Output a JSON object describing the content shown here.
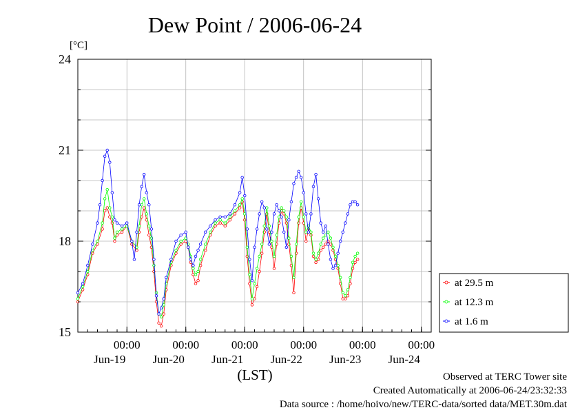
{
  "chart_data": {
    "type": "line",
    "title": "Dew Point / 2006-06-24",
    "ylabel": "[°C]",
    "xlabel": "(LST)",
    "ylim": [
      15,
      24
    ],
    "xlim": [
      0,
      144
    ],
    "y_ticks": [
      15,
      18,
      21,
      24
    ],
    "x_tick_labels": [
      {
        "x": 20,
        "time": "00:00",
        "date": "Jun-19"
      },
      {
        "x": 44,
        "time": "00:00",
        "date": "Jun-20"
      },
      {
        "x": 68,
        "time": "00:00",
        "date": "Jun-21"
      },
      {
        "x": 92,
        "time": "00:00",
        "date": "Jun-22"
      },
      {
        "x": 116,
        "time": "00:00",
        "date": "Jun-23"
      },
      {
        "x": 140,
        "time": "00:00",
        "date": "Jun-24"
      }
    ],
    "grid": true,
    "legend_position": "bottom-right outside",
    "series": [
      {
        "name": "at 29.5 m",
        "color": "#ff0000",
        "points": [
          [
            0,
            16.0
          ],
          [
            2,
            16.4
          ],
          [
            4,
            16.9
          ],
          [
            6,
            17.6
          ],
          [
            8,
            17.9
          ],
          [
            10,
            18.4
          ],
          [
            11,
            19.0
          ],
          [
            12,
            19.1
          ],
          [
            13,
            18.8
          ],
          [
            14,
            18.6
          ],
          [
            15,
            18.0
          ],
          [
            16,
            18.2
          ],
          [
            18,
            18.3
          ],
          [
            20,
            18.5
          ],
          [
            22,
            17.9
          ],
          [
            24,
            17.7
          ],
          [
            25,
            18.3
          ],
          [
            26,
            18.8
          ],
          [
            27,
            19.1
          ],
          [
            28,
            18.7
          ],
          [
            29,
            18.2
          ],
          [
            30,
            17.8
          ],
          [
            31,
            17.0
          ],
          [
            32,
            16.0
          ],
          [
            33,
            15.3
          ],
          [
            34,
            15.2
          ],
          [
            35,
            15.6
          ],
          [
            36,
            16.4
          ],
          [
            38,
            17.2
          ],
          [
            40,
            17.6
          ],
          [
            42,
            17.9
          ],
          [
            44,
            18.0
          ],
          [
            45,
            17.8
          ],
          [
            46,
            17.3
          ],
          [
            47,
            16.9
          ],
          [
            48,
            16.6
          ],
          [
            49,
            16.7
          ],
          [
            50,
            17.2
          ],
          [
            52,
            17.7
          ],
          [
            54,
            18.2
          ],
          [
            56,
            18.5
          ],
          [
            58,
            18.6
          ],
          [
            60,
            18.5
          ],
          [
            62,
            18.7
          ],
          [
            64,
            18.9
          ],
          [
            66,
            19.1
          ],
          [
            67,
            19.3
          ],
          [
            68,
            18.7
          ],
          [
            69,
            17.5
          ],
          [
            70,
            16.6
          ],
          [
            71,
            15.9
          ],
          [
            72,
            16.1
          ],
          [
            73,
            16.5
          ],
          [
            74,
            17.0
          ],
          [
            75,
            17.6
          ],
          [
            76,
            18.3
          ],
          [
            77,
            18.9
          ],
          [
            78,
            18.3
          ],
          [
            79,
            17.8
          ],
          [
            80,
            17.1
          ],
          [
            81,
            17.9
          ],
          [
            82,
            18.6
          ],
          [
            83,
            19.0
          ],
          [
            84,
            18.9
          ],
          [
            85,
            18.6
          ],
          [
            86,
            17.9
          ],
          [
            87,
            17.2
          ],
          [
            88,
            16.3
          ],
          [
            89,
            17.6
          ],
          [
            90,
            18.6
          ],
          [
            91,
            19.1
          ],
          [
            92,
            18.6
          ],
          [
            93,
            18.0
          ],
          [
            94,
            18.4
          ],
          [
            95,
            18.2
          ],
          [
            96,
            17.5
          ],
          [
            97,
            17.3
          ],
          [
            98,
            17.4
          ],
          [
            99,
            17.7
          ],
          [
            100,
            17.8
          ],
          [
            101,
            17.9
          ],
          [
            102,
            18.0
          ],
          [
            103,
            17.9
          ],
          [
            104,
            17.7
          ],
          [
            105,
            17.4
          ],
          [
            106,
            17.1
          ],
          [
            107,
            16.6
          ],
          [
            108,
            16.1
          ],
          [
            109,
            16.1
          ],
          [
            110,
            16.2
          ],
          [
            111,
            16.6
          ],
          [
            112,
            17.1
          ],
          [
            113,
            17.3
          ],
          [
            114,
            17.4
          ]
        ]
      },
      {
        "name": "at 12.3 m",
        "color": "#00ff00",
        "points": [
          [
            0,
            16.1
          ],
          [
            2,
            16.5
          ],
          [
            4,
            17.0
          ],
          [
            6,
            17.7
          ],
          [
            8,
            18.0
          ],
          [
            10,
            18.6
          ],
          [
            11,
            19.4
          ],
          [
            12,
            19.7
          ],
          [
            13,
            19.1
          ],
          [
            14,
            18.8
          ],
          [
            15,
            18.1
          ],
          [
            16,
            18.3
          ],
          [
            18,
            18.4
          ],
          [
            20,
            18.5
          ],
          [
            22,
            18.0
          ],
          [
            24,
            17.8
          ],
          [
            25,
            18.5
          ],
          [
            26,
            19.2
          ],
          [
            27,
            19.4
          ],
          [
            28,
            18.9
          ],
          [
            29,
            18.5
          ],
          [
            30,
            18.1
          ],
          [
            31,
            17.2
          ],
          [
            32,
            16.3
          ],
          [
            33,
            15.6
          ],
          [
            34,
            15.5
          ],
          [
            35,
            15.9
          ],
          [
            36,
            16.6
          ],
          [
            38,
            17.3
          ],
          [
            40,
            17.7
          ],
          [
            42,
            18.0
          ],
          [
            44,
            18.1
          ],
          [
            45,
            17.9
          ],
          [
            46,
            17.5
          ],
          [
            47,
            17.1
          ],
          [
            48,
            16.9
          ],
          [
            49,
            17.0
          ],
          [
            50,
            17.4
          ],
          [
            52,
            17.9
          ],
          [
            54,
            18.3
          ],
          [
            56,
            18.6
          ],
          [
            58,
            18.7
          ],
          [
            60,
            18.6
          ],
          [
            62,
            18.8
          ],
          [
            64,
            19.0
          ],
          [
            66,
            19.2
          ],
          [
            67,
            19.4
          ],
          [
            68,
            18.9
          ],
          [
            69,
            17.8
          ],
          [
            70,
            16.9
          ],
          [
            71,
            16.1
          ],
          [
            72,
            16.6
          ],
          [
            73,
            17.1
          ],
          [
            74,
            17.5
          ],
          [
            75,
            17.9
          ],
          [
            76,
            18.5
          ],
          [
            77,
            19.1
          ],
          [
            78,
            18.5
          ],
          [
            79,
            18.0
          ],
          [
            80,
            17.5
          ],
          [
            81,
            18.2
          ],
          [
            82,
            18.8
          ],
          [
            83,
            19.1
          ],
          [
            84,
            19.0
          ],
          [
            85,
            18.8
          ],
          [
            86,
            18.1
          ],
          [
            87,
            17.5
          ],
          [
            88,
            16.8
          ],
          [
            89,
            17.9
          ],
          [
            90,
            18.8
          ],
          [
            91,
            19.3
          ],
          [
            92,
            18.8
          ],
          [
            93,
            18.3
          ],
          [
            94,
            18.5
          ],
          [
            95,
            18.3
          ],
          [
            96,
            17.6
          ],
          [
            97,
            17.4
          ],
          [
            98,
            17.6
          ],
          [
            99,
            17.9
          ],
          [
            100,
            18.1
          ],
          [
            101,
            18.2
          ],
          [
            102,
            18.3
          ],
          [
            103,
            18.1
          ],
          [
            104,
            17.8
          ],
          [
            105,
            17.5
          ],
          [
            106,
            17.2
          ],
          [
            107,
            16.8
          ],
          [
            108,
            16.3
          ],
          [
            109,
            16.2
          ],
          [
            110,
            16.4
          ],
          [
            111,
            16.8
          ],
          [
            112,
            17.3
          ],
          [
            113,
            17.5
          ],
          [
            114,
            17.6
          ]
        ]
      },
      {
        "name": "at 1.6 m",
        "color": "#0000ff",
        "points": [
          [
            0,
            16.3
          ],
          [
            2,
            16.6
          ],
          [
            4,
            17.2
          ],
          [
            6,
            17.9
          ],
          [
            8,
            18.6
          ],
          [
            9,
            19.2
          ],
          [
            10,
            20.0
          ],
          [
            11,
            20.8
          ],
          [
            12,
            21.0
          ],
          [
            13,
            20.6
          ],
          [
            14,
            19.6
          ],
          [
            15,
            18.7
          ],
          [
            16,
            18.6
          ],
          [
            18,
            18.5
          ],
          [
            20,
            18.6
          ],
          [
            22,
            18.0
          ],
          [
            23,
            17.4
          ],
          [
            24,
            18.3
          ],
          [
            25,
            19.2
          ],
          [
            26,
            19.8
          ],
          [
            27,
            20.2
          ],
          [
            28,
            19.6
          ],
          [
            29,
            19.2
          ],
          [
            30,
            18.4
          ],
          [
            31,
            17.4
          ],
          [
            32,
            16.2
          ],
          [
            33,
            15.6
          ],
          [
            34,
            15.8
          ],
          [
            35,
            16.1
          ],
          [
            36,
            16.8
          ],
          [
            38,
            17.4
          ],
          [
            40,
            18.0
          ],
          [
            42,
            18.2
          ],
          [
            44,
            18.3
          ],
          [
            45,
            17.8
          ],
          [
            46,
            17.4
          ],
          [
            47,
            17.2
          ],
          [
            48,
            17.5
          ],
          [
            49,
            17.7
          ],
          [
            50,
            17.9
          ],
          [
            52,
            18.3
          ],
          [
            54,
            18.5
          ],
          [
            56,
            18.7
          ],
          [
            58,
            18.8
          ],
          [
            60,
            18.8
          ],
          [
            62,
            18.9
          ],
          [
            64,
            19.2
          ],
          [
            66,
            19.6
          ],
          [
            67,
            20.1
          ],
          [
            68,
            19.5
          ],
          [
            69,
            18.4
          ],
          [
            70,
            17.4
          ],
          [
            71,
            16.7
          ],
          [
            72,
            17.8
          ],
          [
            73,
            18.4
          ],
          [
            74,
            18.9
          ],
          [
            75,
            19.3
          ],
          [
            76,
            19.1
          ],
          [
            77,
            18.4
          ],
          [
            78,
            17.9
          ],
          [
            79,
            18.3
          ],
          [
            80,
            18.9
          ],
          [
            81,
            19.2
          ],
          [
            82,
            19.0
          ],
          [
            83,
            18.8
          ],
          [
            84,
            18.3
          ],
          [
            85,
            17.8
          ],
          [
            86,
            18.7
          ],
          [
            87,
            19.3
          ],
          [
            88,
            19.9
          ],
          [
            89,
            20.1
          ],
          [
            90,
            20.3
          ],
          [
            91,
            20.1
          ],
          [
            92,
            19.6
          ],
          [
            93,
            18.9
          ],
          [
            94,
            18.3
          ],
          [
            95,
            18.9
          ],
          [
            96,
            19.8
          ],
          [
            97,
            20.2
          ],
          [
            98,
            19.4
          ],
          [
            99,
            18.6
          ],
          [
            100,
            18.3
          ],
          [
            101,
            18.5
          ],
          [
            102,
            17.9
          ],
          [
            103,
            17.4
          ],
          [
            104,
            17.1
          ],
          [
            105,
            17.2
          ],
          [
            106,
            17.6
          ],
          [
            107,
            18.0
          ],
          [
            108,
            18.3
          ],
          [
            109,
            18.6
          ],
          [
            110,
            18.9
          ],
          [
            111,
            19.2
          ],
          [
            112,
            19.3
          ],
          [
            113,
            19.3
          ],
          [
            114,
            19.2
          ]
        ]
      }
    ]
  },
  "footer": {
    "line1": "Observed at TERC Tower site",
    "line2": "Created Automatically at 2006-06-24/23:32:33",
    "line3": "Data source : /home/hoivo/new/TERC-data/sorted  data/MET.30m.dat"
  }
}
